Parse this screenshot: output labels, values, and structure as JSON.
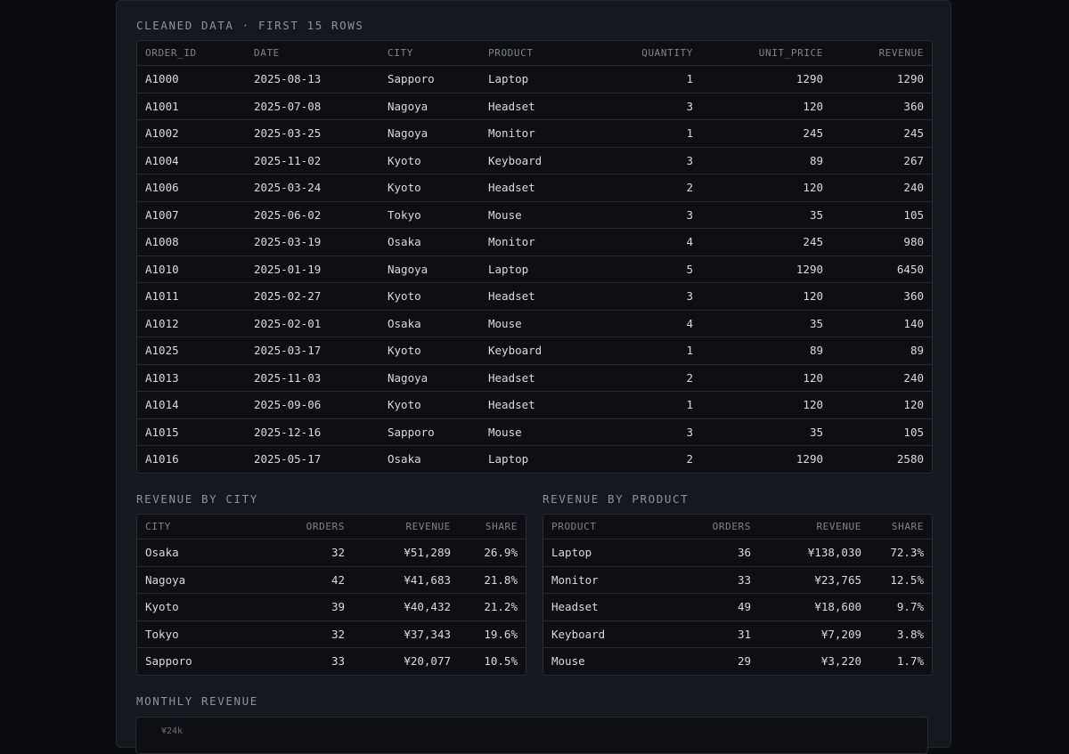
{
  "cleaned": {
    "title": "CLEANED DATA · FIRST 15 ROWS",
    "headers": [
      "ORDER_ID",
      "DATE",
      "CITY",
      "PRODUCT",
      "QUANTITY",
      "UNIT_PRICE",
      "REVENUE"
    ],
    "rows": [
      [
        "A1000",
        "2025-08-13",
        "Sapporo",
        "Laptop",
        "1",
        "1290",
        "1290"
      ],
      [
        "A1001",
        "2025-07-08",
        "Nagoya",
        "Headset",
        "3",
        "120",
        "360"
      ],
      [
        "A1002",
        "2025-03-25",
        "Nagoya",
        "Monitor",
        "1",
        "245",
        "245"
      ],
      [
        "A1004",
        "2025-11-02",
        "Kyoto",
        "Keyboard",
        "3",
        "89",
        "267"
      ],
      [
        "A1006",
        "2025-03-24",
        "Kyoto",
        "Headset",
        "2",
        "120",
        "240"
      ],
      [
        "A1007",
        "2025-06-02",
        "Tokyo",
        "Mouse",
        "3",
        "35",
        "105"
      ],
      [
        "A1008",
        "2025-03-19",
        "Osaka",
        "Monitor",
        "4",
        "245",
        "980"
      ],
      [
        "A1010",
        "2025-01-19",
        "Nagoya",
        "Laptop",
        "5",
        "1290",
        "6450"
      ],
      [
        "A1011",
        "2025-02-27",
        "Kyoto",
        "Headset",
        "3",
        "120",
        "360"
      ],
      [
        "A1012",
        "2025-02-01",
        "Osaka",
        "Mouse",
        "4",
        "35",
        "140"
      ],
      [
        "A1025",
        "2025-03-17",
        "Kyoto",
        "Keyboard",
        "1",
        "89",
        "89"
      ],
      [
        "A1013",
        "2025-11-03",
        "Nagoya",
        "Headset",
        "2",
        "120",
        "240"
      ],
      [
        "A1014",
        "2025-09-06",
        "Kyoto",
        "Headset",
        "1",
        "120",
        "120"
      ],
      [
        "A1015",
        "2025-12-16",
        "Sapporo",
        "Mouse",
        "3",
        "35",
        "105"
      ],
      [
        "A1016",
        "2025-05-17",
        "Osaka",
        "Laptop",
        "2",
        "1290",
        "2580"
      ]
    ]
  },
  "by_city": {
    "title": "REVENUE BY CITY",
    "headers": [
      "CITY",
      "ORDERS",
      "REVENUE",
      "SHARE"
    ],
    "rows": [
      [
        "Osaka",
        "32",
        "¥51,289",
        "26.9%"
      ],
      [
        "Nagoya",
        "42",
        "¥41,683",
        "21.8%"
      ],
      [
        "Kyoto",
        "39",
        "¥40,432",
        "21.2%"
      ],
      [
        "Tokyo",
        "32",
        "¥37,343",
        "19.6%"
      ],
      [
        "Sapporo",
        "33",
        "¥20,077",
        "10.5%"
      ]
    ]
  },
  "by_product": {
    "title": "REVENUE BY PRODUCT",
    "headers": [
      "PRODUCT",
      "ORDERS",
      "REVENUE",
      "SHARE"
    ],
    "rows": [
      [
        "Laptop",
        "36",
        "¥138,030",
        "72.3%"
      ],
      [
        "Monitor",
        "33",
        "¥23,765",
        "12.5%"
      ],
      [
        "Headset",
        "49",
        "¥18,600",
        "9.7%"
      ],
      [
        "Keyboard",
        "31",
        "¥7,209",
        "3.8%"
      ],
      [
        "Mouse",
        "29",
        "¥3,220",
        "1.7%"
      ]
    ]
  },
  "monthly": {
    "title": "MONTHLY REVENUE",
    "axis_label": "¥24k"
  }
}
